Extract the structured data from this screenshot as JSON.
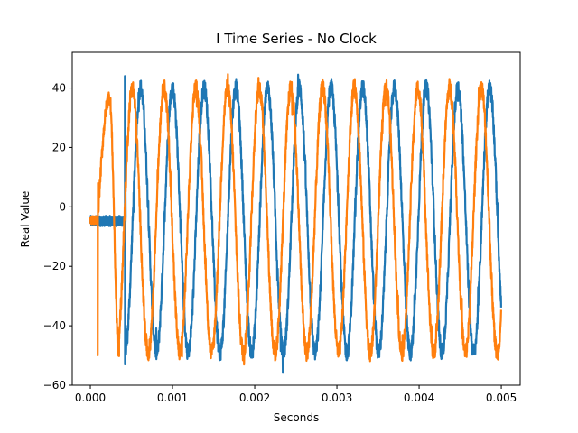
{
  "chart_data": {
    "type": "line",
    "title": "I Time Series - No Clock",
    "xlabel": "Seconds",
    "ylabel": "Real Value",
    "xlim": [
      -0.00022,
      0.00523
    ],
    "ylim": [
      -60,
      52
    ],
    "xticks": [
      0.0,
      0.001,
      0.002,
      0.003,
      0.004,
      0.005
    ],
    "xtick_labels": [
      "0.000",
      "0.001",
      "0.002",
      "0.003",
      "0.004",
      "0.005"
    ],
    "yticks": [
      -60,
      -40,
      -20,
      0,
      20,
      40
    ],
    "ytick_labels": [
      "−60",
      "−40",
      "−20",
      "0",
      "20",
      "40"
    ],
    "grid": false,
    "series": [
      {
        "color": "#1f77b4",
        "start_x": 0.0,
        "end_x": 0.005,
        "pre_signal": {
          "x_end": 0.00043,
          "level": -4.5,
          "band": [
            -6.5,
            -3.0
          ]
        },
        "sine": {
          "x_start": 0.00043,
          "period": 0.000386,
          "amplitude": 44.5,
          "offset": -4.5,
          "phase": -1.4
        },
        "spike": {
          "x": 0.00042,
          "y_top": 44,
          "y_bottom": -53
        }
      },
      {
        "color": "#ff7f0e",
        "start_x": 0.0,
        "end_x": 0.005,
        "pre_signal": {
          "x_end": 9e-05,
          "level": -4.5,
          "band": [
            -6.0,
            -3.0
          ]
        },
        "initial_hump": {
          "x_start": 9e-05,
          "x_end": 0.00035,
          "peak": 37,
          "trough": -50
        },
        "sine": {
          "x_start": 0.00035,
          "period": 0.000386,
          "amplitude": 44.5,
          "offset": -4.5,
          "phase": -1.05
        }
      }
    ]
  }
}
